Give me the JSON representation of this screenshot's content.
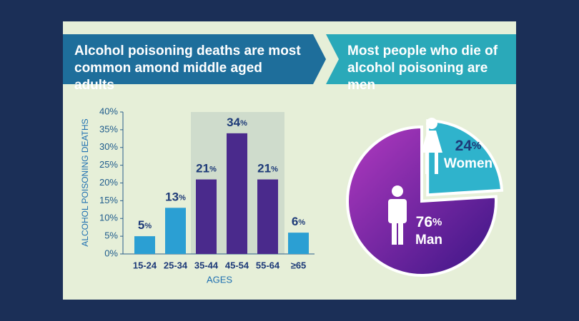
{
  "chart_data": [
    {
      "type": "bar",
      "title": "Alcohol poisoning deaths are most common amond middle aged adults",
      "x_label": "AGES",
      "y_label": "ALCOHOL POISONING DEATHS",
      "categories": [
        "15-24",
        "25-34",
        "35-44",
        "45-54",
        "55-64",
        "≥65"
      ],
      "values": [
        5,
        13,
        21,
        34,
        21,
        6
      ],
      "value_labels": [
        "5%",
        "13%",
        "21%",
        "34%",
        "21%",
        "6%"
      ],
      "colors": [
        "#2b9fd3",
        "#2b9fd3",
        "#4a2a8c",
        "#4a2a8c",
        "#4a2a8c",
        "#2b9fd3"
      ],
      "ylim": [
        0,
        40
      ],
      "yticks": [
        {
          "value": 0,
          "label": "0%"
        },
        {
          "value": 5,
          "label": "5%"
        },
        {
          "value": 10,
          "label": "10%"
        },
        {
          "value": 15,
          "label": "15%"
        },
        {
          "value": 20,
          "label": "20%"
        },
        {
          "value": 25,
          "label": "25%"
        },
        {
          "value": 30,
          "label": "30%"
        },
        {
          "value": 35,
          "label": "35%"
        },
        {
          "value": 40,
          "label": "40%"
        }
      ]
    },
    {
      "type": "pie",
      "title": "Most people who die of alcohol poisoning are men",
      "categories": [
        "Women",
        "Man"
      ],
      "values": [
        24,
        76
      ],
      "value_labels": [
        "24%",
        "76%"
      ],
      "colors": [
        "#2fb3cc",
        "#5a1f9a"
      ]
    }
  ]
}
